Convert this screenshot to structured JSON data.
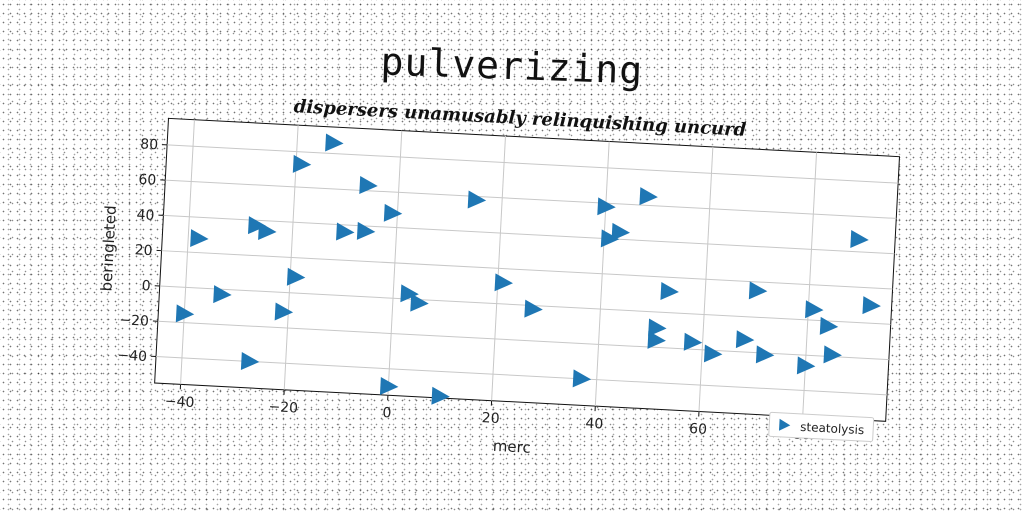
{
  "title": "pulverizing",
  "subtitle": "dispersers unamusably relinquishing uncurd",
  "chart_data": {
    "type": "scatter",
    "title": "pulverizing",
    "subtitle": "dispersers unamusably relinquishing uncurd",
    "xlabel": "merc",
    "ylabel": "beringleted",
    "xlim": [
      -45,
      96
    ],
    "ylim": [
      -55,
      95
    ],
    "xticks": [
      -40,
      -20,
      0,
      20,
      40,
      60,
      80
    ],
    "yticks": [
      -40,
      -20,
      0,
      20,
      40,
      60,
      80
    ],
    "grid": true,
    "legend_position": "bottom-right",
    "marker": "triangle-right",
    "color": "#1f77b4",
    "series": [
      {
        "name": "steatolysis",
        "x": [
          -40,
          -38,
          -33,
          -27,
          -27,
          -25,
          -21,
          -19,
          -19,
          -13,
          -10,
          -6,
          -6,
          0,
          -1,
          3,
          5,
          10,
          15,
          21,
          27,
          37,
          40,
          41,
          43,
          48,
          51,
          51,
          53,
          58,
          62,
          68,
          70,
          72,
          80,
          81,
          84,
          85,
          89,
          92
        ],
        "y": [
          -15,
          28,
          -3,
          37,
          -40,
          34,
          -11,
          73,
          9,
          86,
          36,
          37,
          63,
          -50,
          48,
          3,
          -2,
          -54,
          58,
          12,
          -2,
          -40,
          58,
          40,
          44,
          65,
          -9,
          -16,
          12,
          -16,
          -22,
          -13,
          15,
          -21,
          -26,
          6,
          -3,
          -19,
          47,
          10
        ]
      }
    ]
  }
}
